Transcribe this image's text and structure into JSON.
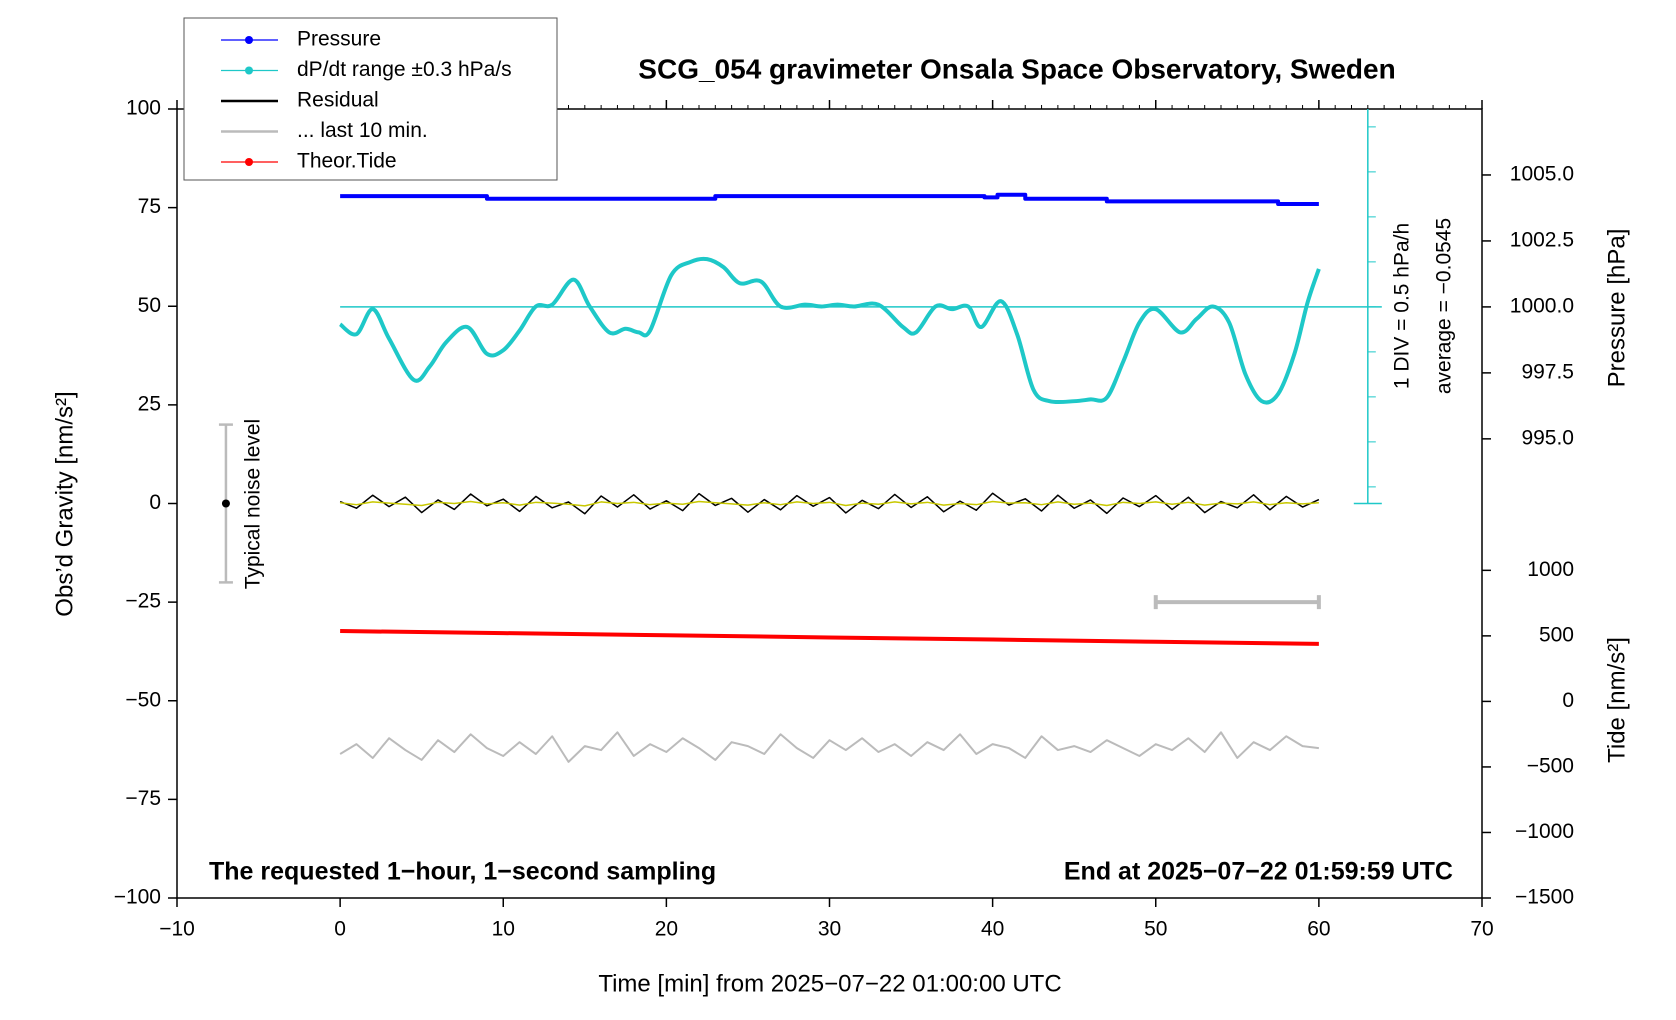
{
  "chart_data": {
    "type": "line",
    "title": "SCG_054 gravimeter Onsala Space Observatory, Sweden",
    "xlabel": "Time [min] from 2025−07−22 01:00:00 UTC",
    "ylabel": "Obs’d Gravity [nm/s²]",
    "y2label": "Pressure [hPa]",
    "y3label": "Tide [nm/s²]",
    "note_left": "The requested 1−hour, 1−second sampling",
    "note_right": "End at 2025−07−22 01:59:59 UTC",
    "dpdt_scale": "1 DIV = 0.5 hPa/h",
    "dpdt_average": {
      "value": -0.0545,
      "label": "average = −0.0545"
    },
    "noise_level": {
      "label": "Typical noise level",
      "x": -7,
      "center": 0,
      "range": [
        -20,
        20
      ]
    },
    "last10_bar": {
      "x": [
        50,
        60
      ],
      "y": -25
    },
    "xlim": [
      -10,
      70
    ],
    "xticks": [
      {
        "value": -10,
        "label": "−10"
      },
      0,
      10,
      20,
      30,
      40,
      50,
      60,
      70
    ],
    "ylim": [
      -100,
      100
    ],
    "yticks": [
      100,
      75,
      50,
      25,
      0,
      {
        "value": -25,
        "label": "−25"
      },
      {
        "value": -50,
        "label": "−50"
      },
      {
        "value": -75,
        "label": "−75"
      },
      {
        "value": -100,
        "label": "−100"
      }
    ],
    "y2lim": [
      977.6,
      1007.5
    ],
    "y2ticks": [
      {
        "value": 995,
        "label": "995.0"
      },
      997.5,
      {
        "value": 1000,
        "label": "1000.0"
      },
      1002.5,
      {
        "value": 1005,
        "label": "1005.0"
      }
    ],
    "y3lim": [
      -1500,
      4520
    ],
    "y3ticks": [
      {
        "value": -1500,
        "label": "−1500"
      },
      {
        "value": -1000,
        "label": "−1000"
      },
      {
        "value": -500,
        "label": "−500"
      },
      0,
      500,
      1000
    ],
    "y4lim": [
      -6.67,
      2.16
    ],
    "x": [
      0,
      1,
      2,
      3,
      4,
      5,
      6,
      7,
      8,
      9,
      10,
      11,
      12,
      13,
      14,
      15,
      16,
      17,
      18,
      19,
      20,
      21,
      22,
      23,
      24,
      25,
      26,
      27,
      28,
      29,
      30,
      31,
      32,
      33,
      34,
      35,
      36,
      37,
      38,
      39,
      40,
      41,
      42,
      43,
      44,
      45,
      46,
      47,
      48,
      49,
      50,
      51,
      52,
      53,
      54,
      55,
      56,
      57,
      58,
      59,
      60
    ],
    "series": [
      {
        "name": "Pressure",
        "color": "#0000ff",
        "axis": "y2",
        "marker": true,
        "width": 4,
        "x": [
          0,
          9,
          9,
          23,
          23,
          39.5,
          39.5,
          40.3,
          40.3,
          42,
          42,
          47,
          47,
          57.5,
          57.5,
          60
        ],
        "values": [
          1004.2,
          1004.2,
          1004.1,
          1004.1,
          1004.2,
          1004.2,
          1004.15,
          1004.15,
          1004.25,
          1004.25,
          1004.1,
          1004.1,
          1004.0,
          1004.0,
          1003.9,
          1003.9
        ]
      },
      {
        "name": "dP/dt range ±0.3 hPa/s",
        "color": "#1ec8c8",
        "axis": "y4",
        "marker": true,
        "smooth": true,
        "width": 4,
        "x": [
          0,
          1,
          2,
          3,
          4.5,
          5.5,
          6.5,
          7.8,
          9,
          10,
          11,
          12,
          13,
          14.3,
          15.3,
          16.5,
          17.5,
          18.3,
          19,
          20.3,
          21.5,
          22.5,
          23.5,
          24.5,
          25.8,
          27,
          28.5,
          29.5,
          30.5,
          31.5,
          33,
          34.5,
          35.3,
          36.5,
          37.5,
          38.5,
          39.3,
          40.5,
          41.5,
          42.5,
          43.5,
          45,
          46,
          47,
          48,
          49,
          50,
          51.5,
          52.5,
          53.5,
          54.5,
          55.5,
          56.5,
          57.5,
          58.5,
          59.3,
          60
        ],
        "values": [
          -0.25,
          -0.36,
          -0.08,
          -0.41,
          -0.87,
          -0.72,
          -0.45,
          -0.28,
          -0.58,
          -0.54,
          -0.32,
          -0.05,
          -0.03,
          0.25,
          -0.05,
          -0.34,
          -0.3,
          -0.34,
          -0.32,
          0.3,
          0.45,
          0.48,
          0.39,
          0.21,
          0.23,
          -0.05,
          -0.03,
          -0.05,
          -0.03,
          -0.05,
          -0.03,
          -0.28,
          -0.34,
          -0.05,
          -0.08,
          -0.05,
          -0.28,
          0.01,
          -0.36,
          -0.98,
          -1.11,
          -1.11,
          -1.09,
          -1.07,
          -0.67,
          -0.23,
          -0.08,
          -0.34,
          -0.19,
          -0.05,
          -0.23,
          -0.81,
          -1.11,
          -1.03,
          -0.58,
          -0.01,
          0.37
        ]
      },
      {
        "name": "Residual",
        "color": "#000000",
        "axis": "y",
        "width": 1.5,
        "values": [
          0.5,
          -1.2,
          2.1,
          -0.8,
          1.6,
          -2.3,
          0.9,
          -1.5,
          2.4,
          -0.6,
          1.1,
          -2.0,
          1.8,
          -1.1,
          0.4,
          -2.6,
          1.9,
          -0.9,
          2.2,
          -1.4,
          0.7,
          -1.8,
          2.5,
          -0.5,
          1.3,
          -2.2,
          1.0,
          -1.6,
          2.0,
          -0.7,
          1.5,
          -2.4,
          0.8,
          -1.3,
          2.3,
          -1.0,
          1.7,
          -2.1,
          0.6,
          -1.7,
          2.6,
          -0.4,
          1.2,
          -1.9,
          2.1,
          -1.2,
          0.9,
          -2.5,
          1.4,
          -0.8,
          2.0,
          -1.5,
          1.6,
          -2.3,
          0.5,
          -1.1,
          2.2,
          -1.6,
          1.8,
          -0.9,
          1.0
        ]
      },
      {
        "name": "... last 10 min.",
        "color": "#bbbbbb",
        "axis": "y",
        "width": 2,
        "values": [
          -63.5,
          -61,
          -64.5,
          -59.5,
          -62.5,
          -65,
          -60,
          -63,
          -58.5,
          -62,
          -64,
          -60.5,
          -63.5,
          -59,
          -65.5,
          -61.5,
          -62.5,
          -58,
          -64,
          -61,
          -63,
          -59.5,
          -62,
          -65,
          -60.5,
          -61.5,
          -63.5,
          -58.5,
          -62,
          -64.5,
          -60,
          -62.5,
          -59.5,
          -63,
          -61,
          -64,
          -60.5,
          -62.5,
          -58.5,
          -63.5,
          -61,
          -62,
          -64.5,
          -59,
          -62.5,
          -61.5,
          -63,
          -60,
          -62,
          -64,
          -61,
          -62.5,
          -59.5,
          -63,
          -58,
          -64.5,
          -60.5,
          -62.5,
          -59,
          -61.5,
          -62
        ]
      },
      {
        "name": "Theor.Tide",
        "color": "#ff0000",
        "axis": "y3",
        "marker": true,
        "width": 4,
        "x": [
          0,
          10,
          20,
          30,
          40,
          50,
          60
        ],
        "values": [
          537,
          521,
          505,
          488,
          472,
          455,
          439
        ]
      },
      {
        "color": "#c8c800",
        "axis": "y",
        "width": 1.5,
        "values": [
          0.2,
          -0.3,
          0.4,
          0.1,
          -0.2,
          -0.5,
          0.3,
          0.0,
          0.5,
          -0.1,
          0.2,
          -0.4,
          0.3,
          0.1,
          -0.2,
          -0.6,
          0.4,
          0.0,
          0.3,
          -0.3,
          0.1,
          -0.2,
          0.5,
          0.2,
          -0.1,
          -0.4,
          0.2,
          -0.3,
          0.4,
          0.0,
          0.3,
          -0.5,
          0.1,
          -0.2,
          0.4,
          -0.1,
          0.3,
          -0.4,
          0.0,
          -0.3,
          0.5,
          0.1,
          0.2,
          -0.3,
          0.4,
          -0.2,
          0.1,
          -0.5,
          0.3,
          0.0,
          0.4,
          -0.2,
          0.3,
          -0.4,
          0.1,
          -0.1,
          0.4,
          -0.3,
          0.2,
          -0.1,
          0.2
        ]
      }
    ]
  }
}
